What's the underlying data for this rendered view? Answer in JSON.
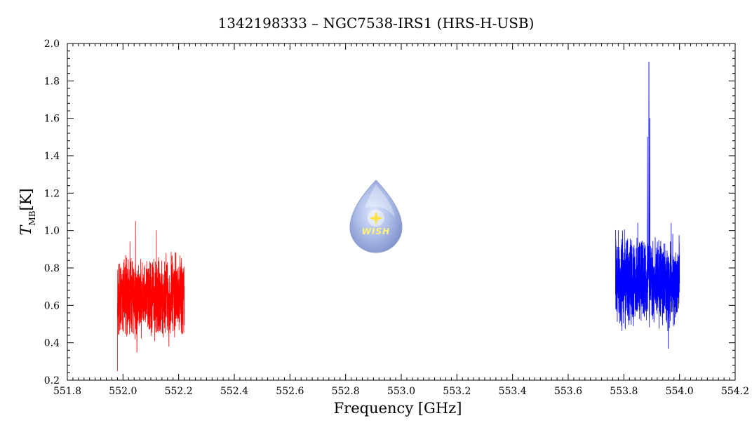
{
  "chart_data": {
    "type": "line",
    "title": "1342198333 – NGC7538-IRS1 (HRS-H-USB)",
    "xlabel": "Frequency [GHz]",
    "ylabel_main": "T",
    "ylabel_sub": "MB",
    "ylabel_unit": "[K]",
    "xlim": [
      551.8,
      554.2
    ],
    "ylim": [
      0.2,
      2.0
    ],
    "x_ticks": [
      "551.8",
      "552.0",
      "552.2",
      "552.4",
      "552.6",
      "552.8",
      "553.0",
      "553.2",
      "553.4",
      "553.6",
      "553.8",
      "554.0",
      "554.2"
    ],
    "y_ticks": [
      "0.2",
      "0.4",
      "0.6",
      "0.8",
      "1.0",
      "1.2",
      "1.4",
      "1.6",
      "1.8",
      "2.0"
    ],
    "grid": false,
    "logo": {
      "text": "WISH",
      "drop_color": "#8fa3d9",
      "star_color": "#ffe14a"
    },
    "series": [
      {
        "color": "#ff0000",
        "x_range": [
          551.98,
          552.22
        ],
        "baseline": 0.65,
        "noise_amplitude": 0.18,
        "points": [
          {
            "x": 551.98,
            "y": 0.25
          },
          {
            "x": 551.983,
            "y": 0.82
          },
          {
            "x": 552.025,
            "y": 0.94
          },
          {
            "x": 552.045,
            "y": 1.05
          },
          {
            "x": 552.05,
            "y": 0.35
          },
          {
            "x": 552.12,
            "y": 1.0
          },
          {
            "x": 552.165,
            "y": 0.38
          },
          {
            "x": 552.19,
            "y": 0.88
          },
          {
            "x": 552.22,
            "y": 0.7
          }
        ]
      },
      {
        "color": "#0000ff",
        "x_range": [
          553.77,
          554.0
        ],
        "baseline": 0.73,
        "noise_amplitude": 0.2,
        "points": [
          {
            "x": 553.77,
            "y": 0.66
          },
          {
            "x": 553.78,
            "y": 1.0
          },
          {
            "x": 553.85,
            "y": 1.04
          },
          {
            "x": 553.885,
            "y": 1.5
          },
          {
            "x": 553.89,
            "y": 1.9
          },
          {
            "x": 553.893,
            "y": 1.6
          },
          {
            "x": 553.9,
            "y": 0.7
          },
          {
            "x": 553.96,
            "y": 0.37
          },
          {
            "x": 553.97,
            "y": 1.04
          },
          {
            "x": 554.0,
            "y": 0.72
          }
        ]
      }
    ]
  }
}
